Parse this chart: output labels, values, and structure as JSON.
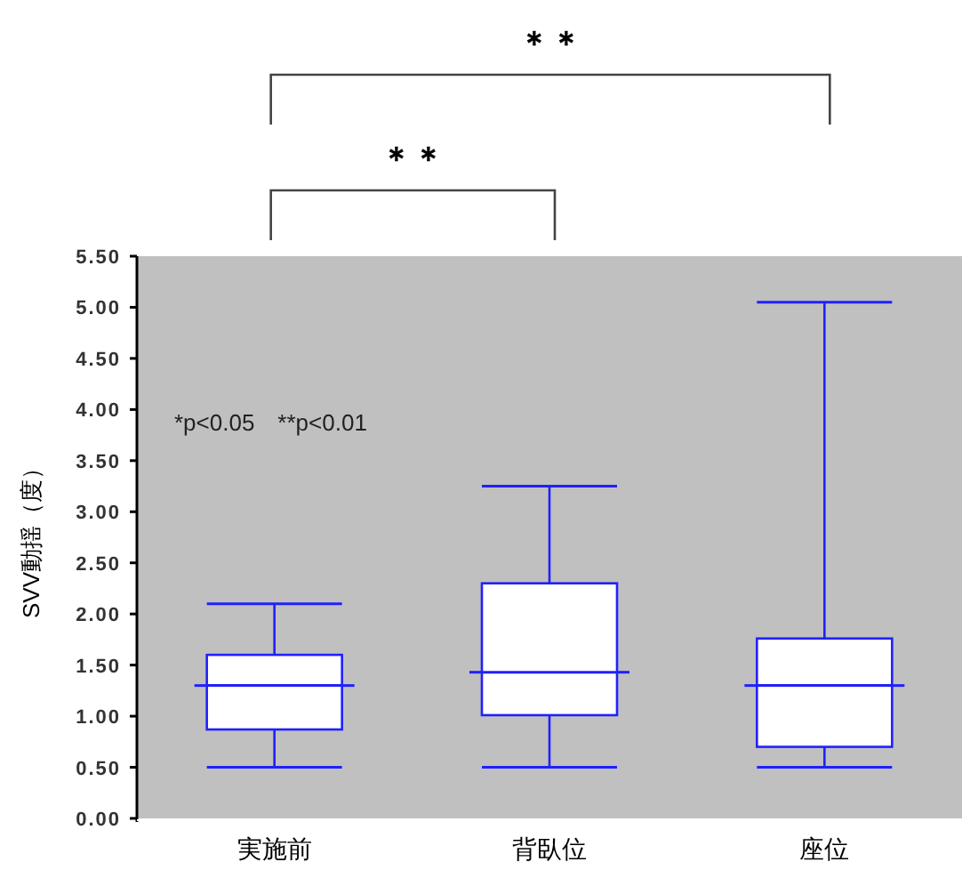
{
  "chart_data": {
    "type": "box",
    "ylabel": "SVV動揺（度）",
    "categories": [
      "実施前",
      "背臥位",
      "座位"
    ],
    "boxes": [
      {
        "low": 0.5,
        "q1": 0.87,
        "median": 1.3,
        "q3": 1.6,
        "high": 2.1
      },
      {
        "low": 0.5,
        "q1": 1.01,
        "median": 1.43,
        "q3": 2.3,
        "high": 3.25
      },
      {
        "low": 0.5,
        "q1": 0.7,
        "median": 1.3,
        "q3": 1.76,
        "high": 5.05
      }
    ],
    "color": "#2020ff",
    "ylim": [
      0,
      5.5
    ],
    "yticks": [
      {
        "value": 0,
        "label": "0.00"
      },
      {
        "value": 0.5,
        "label": "0.50"
      },
      {
        "value": 1,
        "label": "1.00"
      },
      {
        "value": 1.5,
        "label": "1.50"
      },
      {
        "value": 2,
        "label": "2.00"
      },
      {
        "value": 2.5,
        "label": "2.50"
      },
      {
        "value": 3,
        "label": "3.00"
      },
      {
        "value": 3.5,
        "label": "3.50"
      },
      {
        "value": 4,
        "label": "4.00"
      },
      {
        "value": 4.5,
        "label": "4.50"
      },
      {
        "value": 5,
        "label": "5.00"
      },
      {
        "value": 5.5,
        "label": "5.50"
      }
    ],
    "grid": false,
    "annotations": [
      "＊＊",
      "＊＊",
      "*p<0.05　**p<0.01"
    ]
  }
}
